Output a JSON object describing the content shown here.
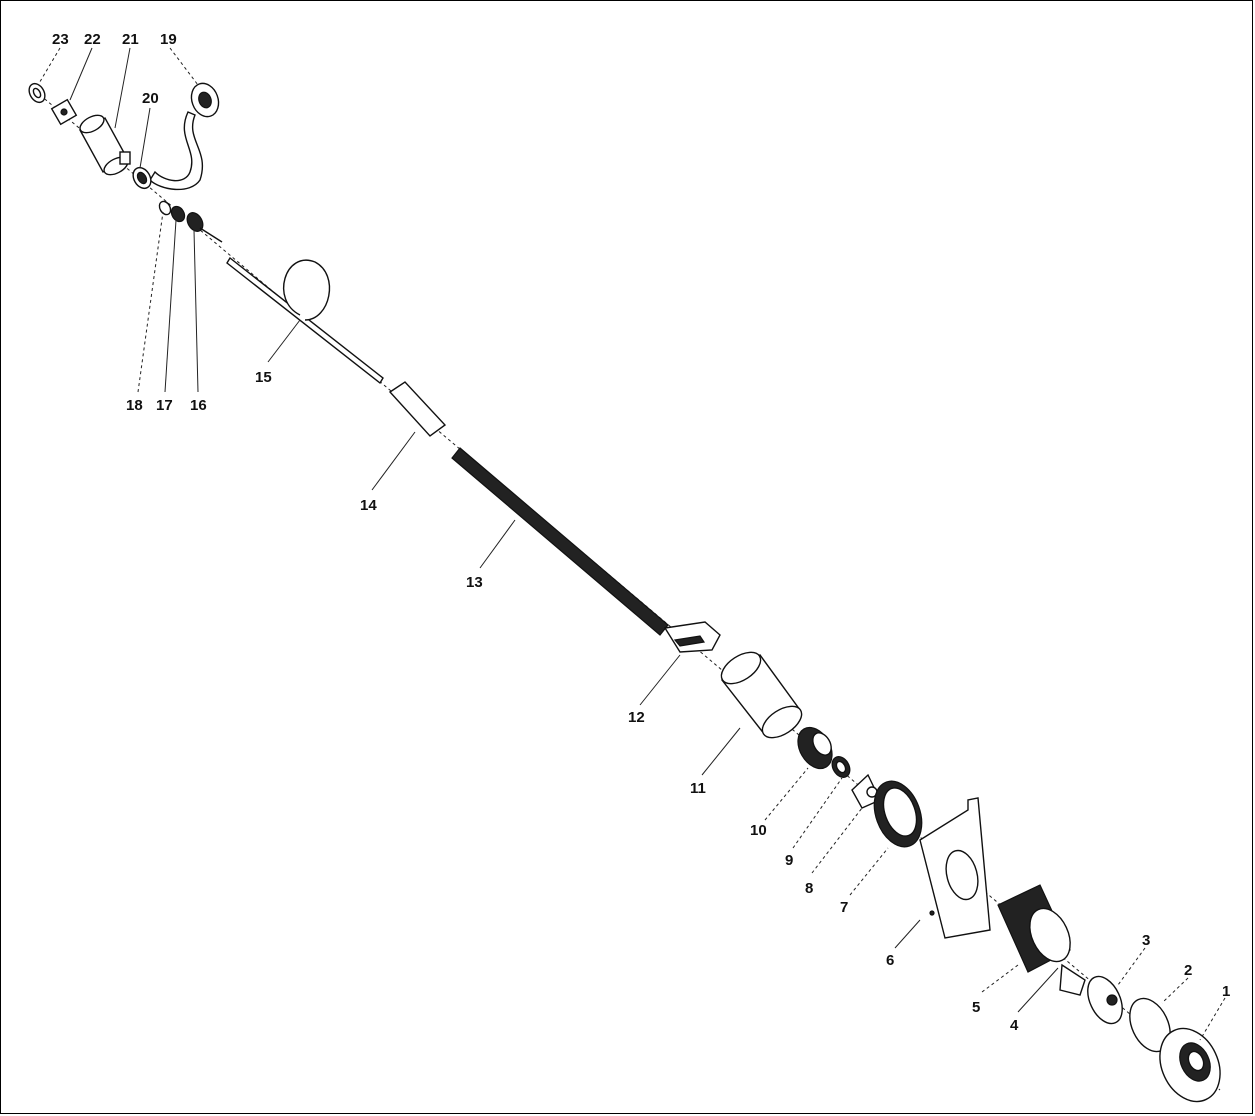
{
  "callouts": [
    {
      "id": "p23",
      "text": "23"
    },
    {
      "id": "p22",
      "text": "22"
    },
    {
      "id": "p21",
      "text": "21"
    },
    {
      "id": "p19",
      "text": "19"
    },
    {
      "id": "p20",
      "text": "20"
    },
    {
      "id": "p18",
      "text": "18"
    },
    {
      "id": "p17",
      "text": "17"
    },
    {
      "id": "p16a",
      "text": "16"
    },
    {
      "id": "p15",
      "text": "15"
    },
    {
      "id": "p14",
      "text": "14"
    },
    {
      "id": "p13",
      "text": "13"
    },
    {
      "id": "p12",
      "text": "12"
    },
    {
      "id": "p11",
      "text": "11"
    },
    {
      "id": "p10",
      "text": "10"
    },
    {
      "id": "p9",
      "text": "9"
    },
    {
      "id": "p8",
      "text": "8"
    },
    {
      "id": "p7",
      "text": "7"
    },
    {
      "id": "p6",
      "text": "6"
    },
    {
      "id": "p5",
      "text": "5"
    },
    {
      "id": "p4",
      "text": "4"
    },
    {
      "id": "p3",
      "text": "3"
    },
    {
      "id": "p2",
      "text": "2"
    },
    {
      "id": "p1",
      "text": "1"
    }
  ]
}
